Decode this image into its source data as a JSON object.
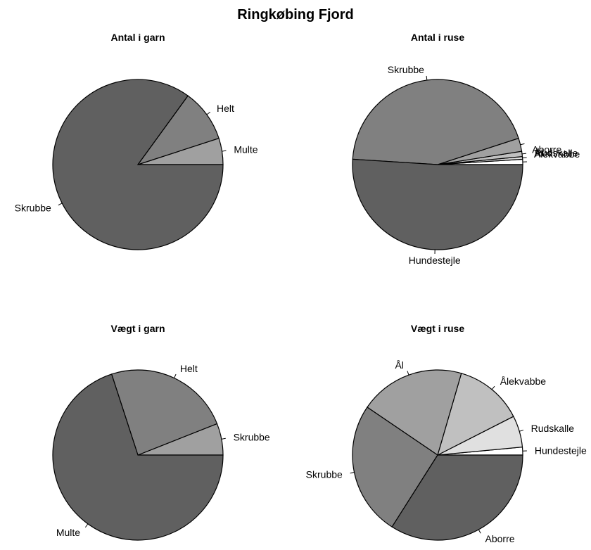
{
  "main_title": "Ringkøbing Fjord",
  "chart_data": [
    {
      "type": "pie",
      "title": "Antal i garn",
      "labels": [
        "Multe",
        "Helt",
        "Skrubbe"
      ],
      "values": [
        5,
        10,
        85
      ],
      "colors": [
        "#a0a0a0",
        "#808080",
        "#606060"
      ]
    },
    {
      "type": "pie",
      "title": "Antal i ruse",
      "labels": [
        "Rudskalle",
        "Ål",
        "Ålekvabbe",
        "Aborre",
        "Skrubbe",
        "Hundestejle"
      ],
      "values": [
        1.0,
        0.5,
        1.0,
        2.5,
        44.0,
        51.0
      ],
      "colors": [
        "#ffffff",
        "#e0e0e0",
        "#c0c0c0",
        "#a0a0a0",
        "#808080",
        "#606060"
      ]
    },
    {
      "type": "pie",
      "title": "Vægt i garn",
      "labels": [
        "Skrubbe",
        "Helt",
        "Multe"
      ],
      "values": [
        6,
        24,
        70
      ],
      "colors": [
        "#a0a0a0",
        "#808080",
        "#606060"
      ]
    },
    {
      "type": "pie",
      "title": "Vægt i ruse",
      "labels": [
        "Hundestejle",
        "Rudskalle",
        "Ålekvabbe",
        "Ål",
        "Skrubbe",
        "Aborre"
      ],
      "values": [
        1.5,
        6.0,
        13.0,
        20.0,
        25.5,
        34.0
      ],
      "colors": [
        "#ffffff",
        "#e0e0e0",
        "#c0c0c0",
        "#a0a0a0",
        "#808080",
        "#606060"
      ]
    }
  ]
}
